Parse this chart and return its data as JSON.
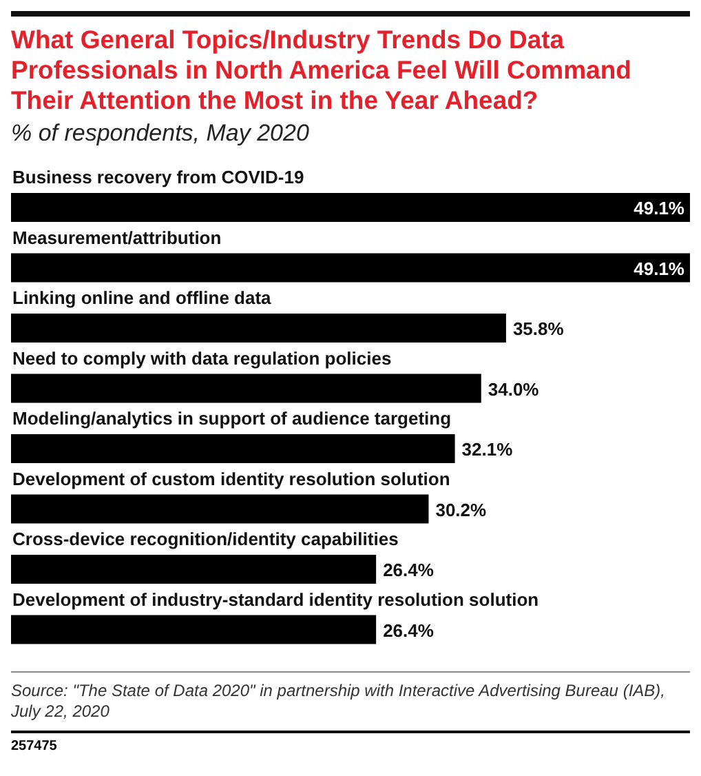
{
  "chart_data": {
    "type": "bar",
    "orientation": "horizontal",
    "title": "What General Topics/Industry Trends Do Data Professionals in North America Feel Will Command Their Attention the Most in the Year Ahead?",
    "subtitle": "% of respondents, May 2020",
    "categories": [
      "Business recovery from COVID-19",
      "Measurement/attribution",
      "Linking online and offline data",
      "Need to comply with data regulation policies",
      "Modeling/analytics in support of audience targeting",
      "Development of custom identity resolution solution",
      "Cross-device recognition/identity capabilities",
      "Development of industry-standard identity resolution solution"
    ],
    "values": [
      49.1,
      49.1,
      35.8,
      34.0,
      32.1,
      30.2,
      26.4,
      26.4
    ],
    "value_labels": [
      "49.1%",
      "49.1%",
      "35.8%",
      "34.0%",
      "32.1%",
      "30.2%",
      "26.4%",
      "26.4%"
    ],
    "color": "#000000",
    "annotations": [
      "Source: \"The State of Data 2020\" in partnership with Interactive Advertising Bureau (IAB), July 22, 2020",
      "257475"
    ]
  }
}
